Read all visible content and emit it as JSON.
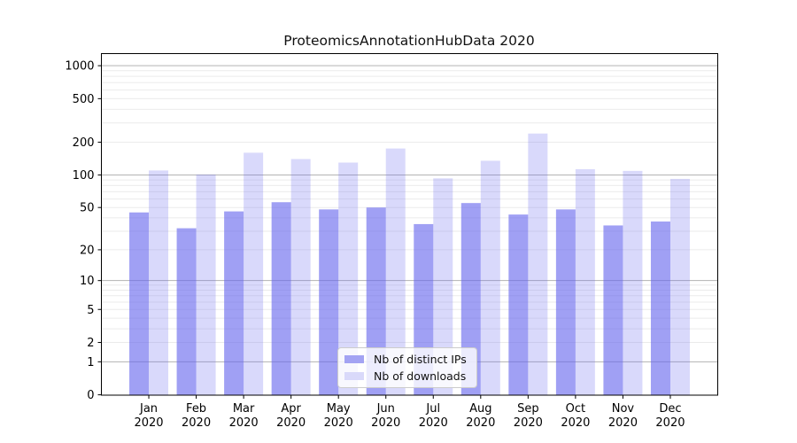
{
  "chart_data": {
    "type": "bar",
    "title": "ProteomicsAnnotationHubData 2020",
    "categories": [
      "Jan",
      "Feb",
      "Mar",
      "Apr",
      "May",
      "Jun",
      "Jul",
      "Aug",
      "Sep",
      "Oct",
      "Nov",
      "Dec"
    ],
    "x_tick_second_line": "2020",
    "series": [
      {
        "name": "Nb of distinct IPs",
        "values": [
          45,
          32,
          46,
          56,
          48,
          50,
          35,
          55,
          43,
          48,
          34,
          37
        ],
        "fill": "#6666ee",
        "opacity": 0.62,
        "flat_color": "#a3a3f3"
      },
      {
        "name": "Nb of downloads",
        "values": [
          110,
          101,
          160,
          140,
          130,
          175,
          93,
          135,
          240,
          113,
          109,
          92
        ],
        "fill": "#6666ee",
        "opacity": 0.25,
        "flat_color": "#d9d9fa"
      }
    ],
    "y_scale": "log10(1+v)",
    "y_ticks": [
      0,
      1,
      2,
      5,
      10,
      20,
      50,
      100,
      200,
      500,
      1000
    ],
    "y_major_gridlines": [
      1,
      10,
      100,
      1000
    ],
    "y_minor_gridlines": [
      2,
      3,
      4,
      5,
      6,
      7,
      8,
      9,
      20,
      30,
      40,
      50,
      60,
      70,
      80,
      90,
      200,
      300,
      400,
      500,
      600,
      700,
      800,
      900
    ],
    "ylim": [
      0,
      1360
    ],
    "grid": true,
    "legend_position": "lower center (inside plot)",
    "colors": {
      "grid_major": "#b3b3b3",
      "grid_minor": "#ebebeb",
      "spine": "#000000",
      "tick_text": "#000000",
      "legend_border": "#cccccc"
    }
  }
}
